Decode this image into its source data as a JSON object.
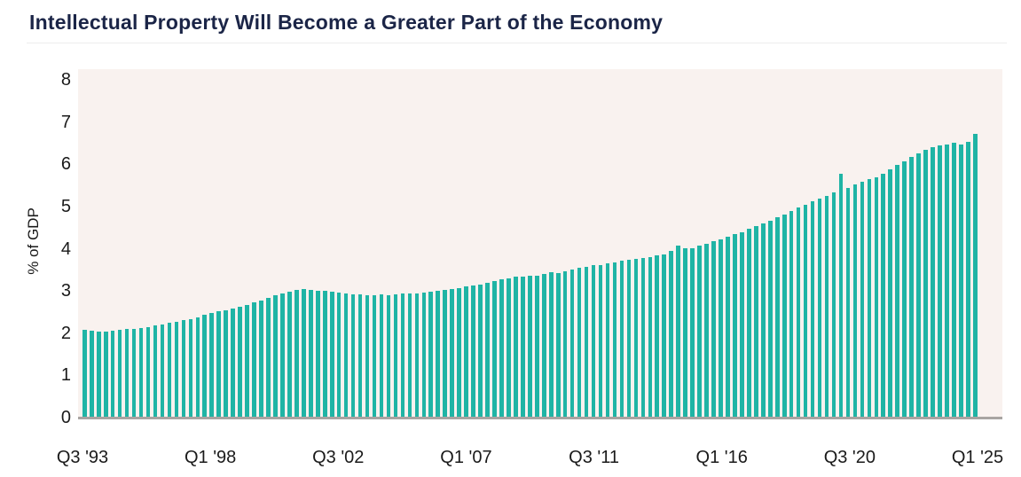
{
  "title": "Intellectual Property Will Become a Greater Part of the Economy",
  "colors": {
    "title": "#1b2547",
    "bar": "#1fb4a5",
    "plot_background": "#f9f2ef",
    "axis_line": "#a9a5a2",
    "tick_text": "#1a1a1a"
  },
  "chart_data": {
    "type": "bar",
    "title": "Intellectual Property Will Become a Greater Part of the Economy",
    "xlabel": "",
    "ylabel": "% of GDP",
    "unit": "percent of GDP",
    "frequency": "quarterly",
    "start_period": "Q3 1993",
    "end_period": "Q1 2025",
    "ylim": [
      0,
      8
    ],
    "yticks": [
      0,
      1,
      2,
      3,
      4,
      5,
      6,
      7,
      8
    ],
    "grid": false,
    "legend": false,
    "x_tick_labels": [
      "Q3 '93",
      "Q1 '98",
      "Q3 '02",
      "Q1 '07",
      "Q3 '11",
      "Q1 '16",
      "Q3 '20",
      "Q1 '25"
    ],
    "x_tick_indices": [
      0,
      18,
      36,
      54,
      72,
      90,
      108,
      126
    ],
    "annotations": [
      "COVID-era spike at Q2 2020 (~5.75)",
      "series peaks at ~6.7 in Q1 2025"
    ],
    "values": [
      2.05,
      2.03,
      2.02,
      2.02,
      2.03,
      2.05,
      2.07,
      2.09,
      2.11,
      2.13,
      2.16,
      2.19,
      2.22,
      2.25,
      2.28,
      2.32,
      2.36,
      2.41,
      2.46,
      2.49,
      2.52,
      2.56,
      2.61,
      2.65,
      2.7,
      2.75,
      2.81,
      2.87,
      2.92,
      2.97,
      3.01,
      3.03,
      3.0,
      2.98,
      2.98,
      2.96,
      2.94,
      2.92,
      2.9,
      2.89,
      2.88,
      2.88,
      2.89,
      2.88,
      2.89,
      2.91,
      2.92,
      2.93,
      2.95,
      2.97,
      2.99,
      3.01,
      3.03,
      3.05,
      3.09,
      3.11,
      3.14,
      3.17,
      3.21,
      3.25,
      3.28,
      3.31,
      3.31,
      3.33,
      3.35,
      3.38,
      3.42,
      3.4,
      3.45,
      3.48,
      3.52,
      3.56,
      3.6,
      3.6,
      3.63,
      3.66,
      3.69,
      3.72,
      3.74,
      3.76,
      3.79,
      3.82,
      3.85,
      3.92,
      4.05,
      4.0,
      4.0,
      4.05,
      4.1,
      4.15,
      4.2,
      4.26,
      4.32,
      4.38,
      4.45,
      4.52,
      4.58,
      4.65,
      4.72,
      4.8,
      4.88,
      4.95,
      5.02,
      5.1,
      5.17,
      5.24,
      5.32,
      5.75,
      5.42,
      5.5,
      5.56,
      5.62,
      5.68,
      5.76,
      5.86,
      5.96,
      6.06,
      6.16,
      6.24,
      6.32,
      6.38,
      6.42,
      6.46,
      6.5,
      6.45,
      6.52,
      6.7
    ]
  }
}
